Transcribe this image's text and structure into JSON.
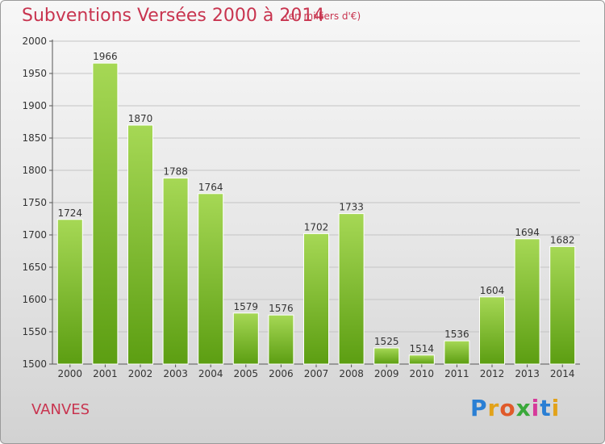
{
  "title": "Subventions Versées 2000 à 2014",
  "subtitle": "(en milliers d'€)",
  "city": "VANVES",
  "logo": {
    "letters": [
      "P",
      "r",
      "o",
      "x",
      "i",
      "t",
      "i"
    ],
    "colors": [
      "#2a7fd4",
      "#e2a21a",
      "#e05a2a",
      "#3aa83a",
      "#d63a9a",
      "#2a7fd4",
      "#e2a21a"
    ]
  },
  "colors": {
    "bar_top": "#a6d855",
    "bar_bottom": "#5c9e12",
    "title": "#c8344f"
  },
  "chart_data": {
    "type": "bar",
    "categories": [
      "2000",
      "2001",
      "2002",
      "2003",
      "2004",
      "2005",
      "2006",
      "2007",
      "2008",
      "2009",
      "2010",
      "2011",
      "2012",
      "2013",
      "2014"
    ],
    "values": [
      1724,
      1966,
      1870,
      1788,
      1764,
      1579,
      1576,
      1702,
      1733,
      1525,
      1514,
      1536,
      1604,
      1694,
      1682
    ],
    "title": "Subventions Versées 2000 à 2014",
    "ylim": [
      1500,
      2000
    ],
    "yticks": [
      1500,
      1550,
      1600,
      1650,
      1700,
      1750,
      1800,
      1850,
      1900,
      1950,
      2000
    ],
    "grid": true
  }
}
